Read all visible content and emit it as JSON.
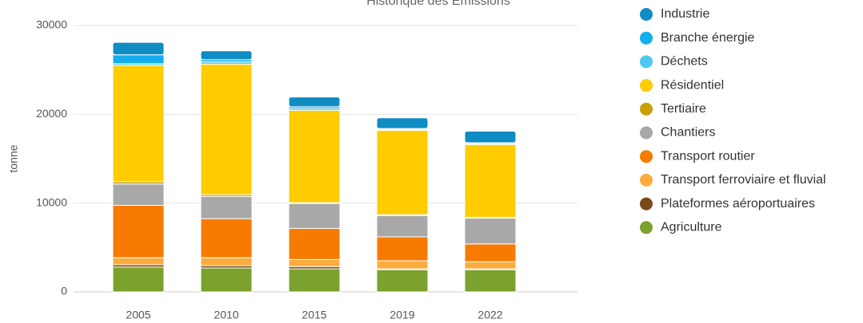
{
  "chart_data": {
    "type": "stacked_bar",
    "title": "Historique des Émissions",
    "y_label": "tonne",
    "categories": [
      "2005",
      "2010",
      "2015",
      "2019",
      "2022"
    ],
    "ylim": [
      0,
      30000
    ],
    "yticks": [
      0,
      10000,
      20000,
      30000
    ],
    "grid": true,
    "legend": "right",
    "series": [
      {
        "name": "Industrie",
        "color": "#0f8cc4",
        "values": [
          1400,
          1000,
          1100,
          1200,
          1300
        ]
      },
      {
        "name": "Branche énergie",
        "color": "#12aeef",
        "values": [
          1000,
          250,
          200,
          100,
          100
        ]
      },
      {
        "name": "Déchets",
        "color": "#4cc9f0",
        "values": [
          200,
          250,
          200,
          100,
          100
        ]
      },
      {
        "name": "Résidentiel",
        "color": "#ffcc00",
        "values": [
          13100,
          14700,
          10400,
          9500,
          8200
        ]
      },
      {
        "name": "Tertiaire",
        "color": "#c8a000",
        "values": [
          250,
          200,
          100,
          100,
          100
        ]
      },
      {
        "name": "Chantiers",
        "color": "#a8a8a8",
        "values": [
          2400,
          2500,
          2800,
          2400,
          2900
        ]
      },
      {
        "name": "Transport routier",
        "color": "#f77b00",
        "values": [
          5900,
          4400,
          3500,
          2700,
          2000
        ]
      },
      {
        "name": "Transport ferroviaire et fluvial",
        "color": "#fbac3c",
        "values": [
          800,
          900,
          800,
          900,
          800
        ]
      },
      {
        "name": "Plateformes aéroportuaires",
        "color": "#7a4a1c",
        "values": [
          250,
          250,
          250,
          100,
          100
        ]
      },
      {
        "name": "Agriculture",
        "color": "#7aa22c",
        "values": [
          2800,
          2700,
          2600,
          2500,
          2500
        ]
      }
    ]
  }
}
